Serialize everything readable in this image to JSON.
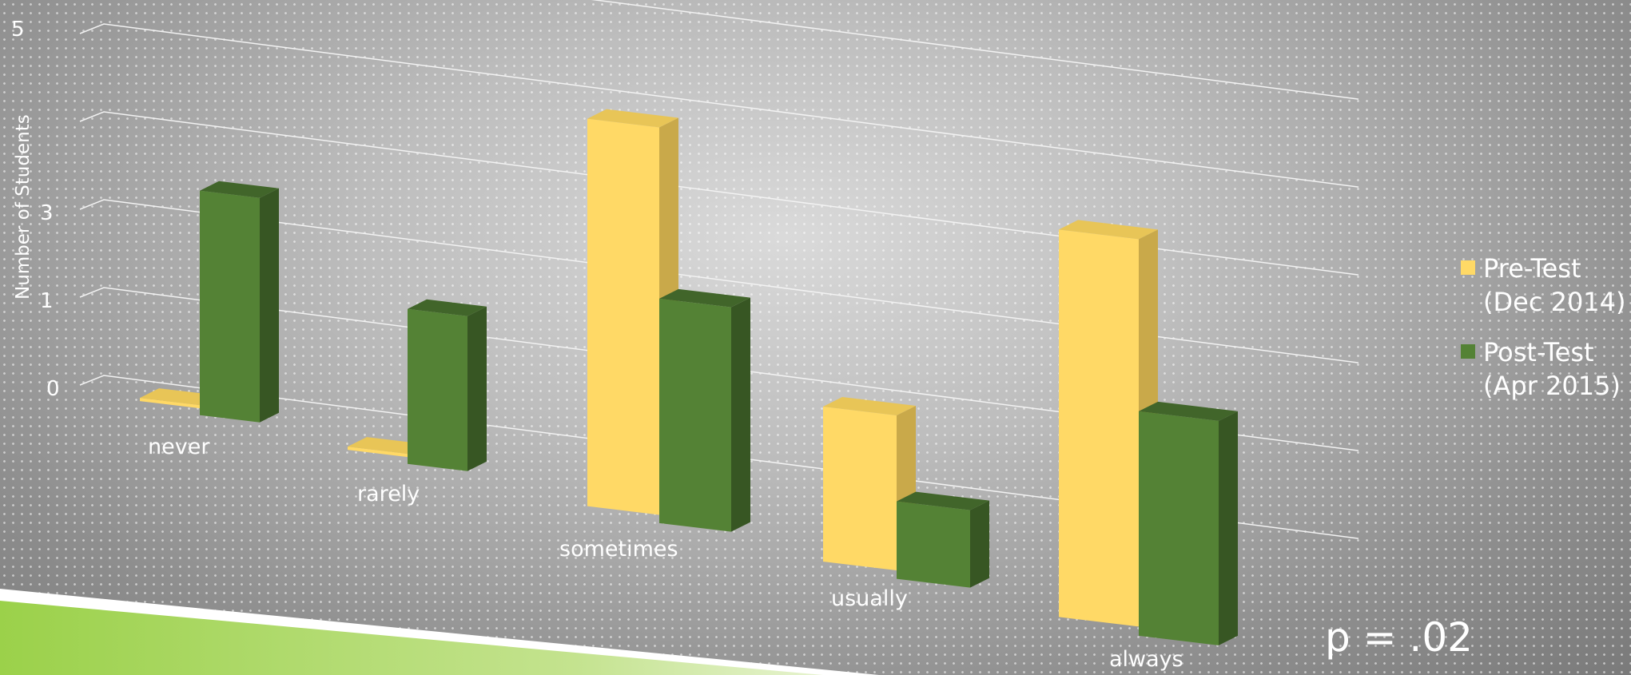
{
  "chart_data": {
    "type": "bar",
    "style": "3d-clustered-column",
    "categories": [
      "never",
      "rarely",
      "sometimes",
      "usually",
      "always"
    ],
    "series": [
      {
        "name": "Pre-Test\n(Dec 2014)",
        "values": [
          0,
          0,
          5,
          2,
          5
        ],
        "color": "#ffd966"
      },
      {
        "name": "Post-Test\n(Apr 2015)",
        "values": [
          3,
          2,
          3,
          1,
          3
        ],
        "color": "#548235"
      }
    ],
    "ylabel": "Number of Students",
    "yticks": [
      "0",
      "1",
      "3",
      "5"
    ],
    "ylim": [
      0,
      5
    ],
    "grid": true,
    "legend": "right"
  },
  "annotation": {
    "text": "p = .02"
  },
  "colors": {
    "pre": "#ffd966",
    "pre_side": "#c9a94a",
    "pre_top": "#e8c557",
    "post": "#548235",
    "post_side": "#375623",
    "post_top": "#41652a",
    "gridline": "#f2f2f2",
    "accent_green": "#9bd14a"
  }
}
